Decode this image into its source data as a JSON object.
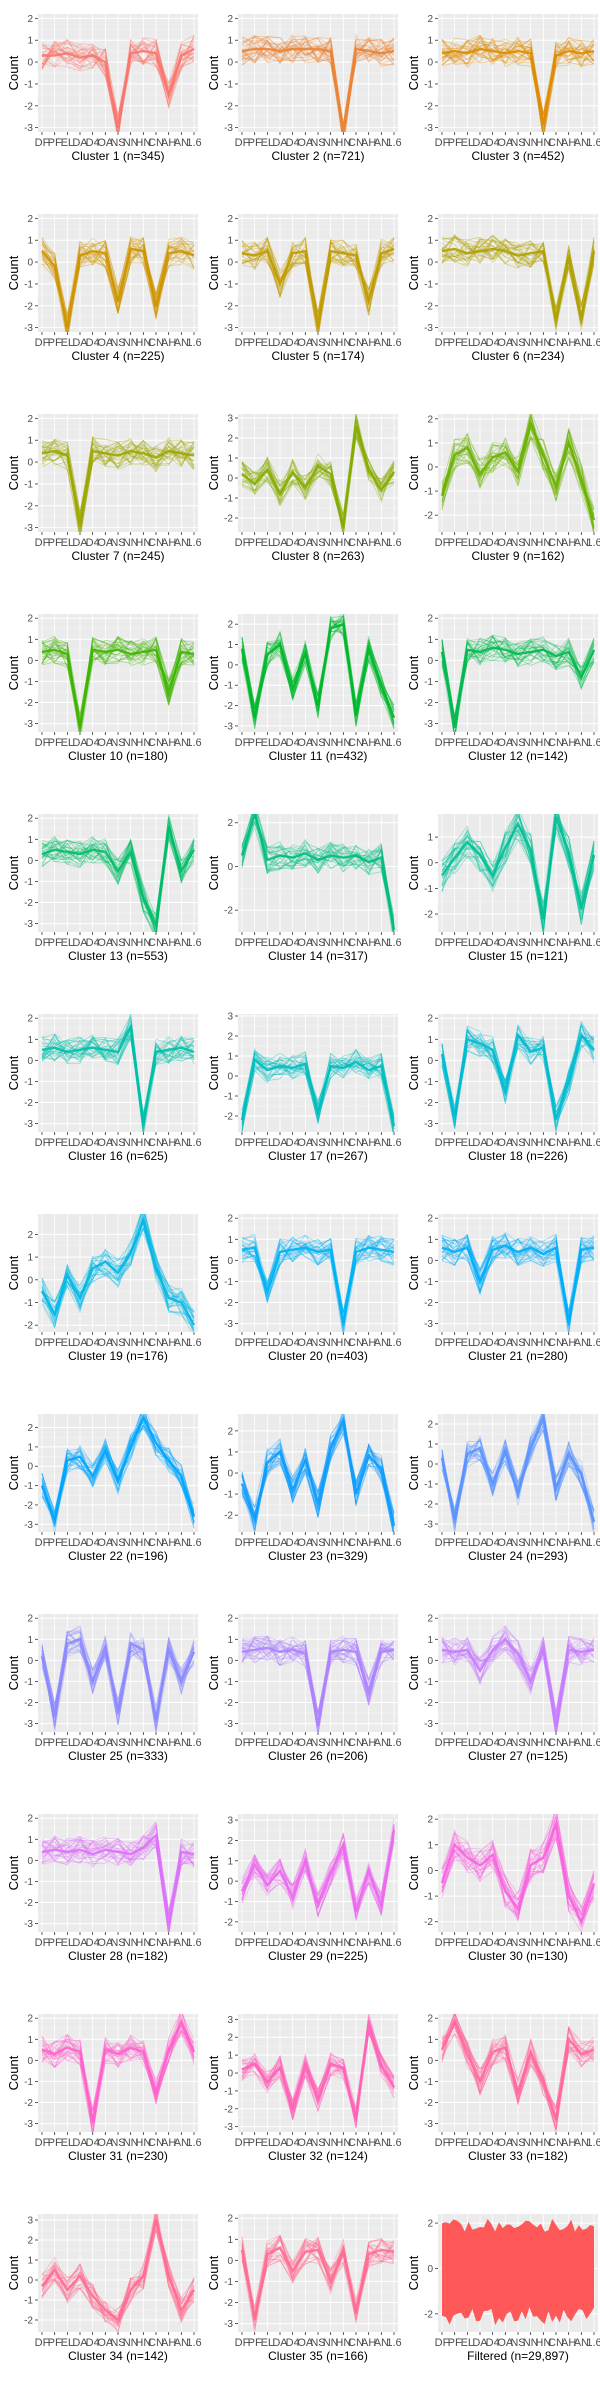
{
  "y_axis_label": "Count",
  "x_tick_labels": [
    "DF",
    "PF",
    "EL",
    "DA",
    "D4",
    "OA",
    "NS",
    "NN",
    "HN",
    "CN",
    "AH",
    "AN",
    "1.6"
  ],
  "chart_data": [
    {
      "type": "line",
      "caption": "Cluster 1 (n=345)",
      "color": "#F8766D",
      "ylim": [
        -3.2,
        2.2
      ],
      "yticks": [
        -3,
        -2,
        -1,
        0,
        1,
        2
      ],
      "profile": [
        0.3,
        0.3,
        0.4,
        0.2,
        0.3,
        0.0,
        -3.0,
        0.4,
        0.5,
        0.4,
        -1.5,
        0.3,
        0.6
      ]
    },
    {
      "type": "line",
      "caption": "Cluster 2 (n=721)",
      "color": "#EB8335",
      "ylim": [
        -3.2,
        2.2
      ],
      "yticks": [
        -3,
        -2,
        -1,
        0,
        1,
        2
      ],
      "profile": [
        0.5,
        0.6,
        0.6,
        0.5,
        0.6,
        0.6,
        0.6,
        0.5,
        -3.2,
        0.6,
        0.5,
        0.4,
        0.5
      ]
    },
    {
      "type": "line",
      "caption": "Cluster 3 (n=452)",
      "color": "#DE8C00",
      "ylim": [
        -3.2,
        2.2
      ],
      "yticks": [
        -3,
        -2,
        -1,
        0,
        1,
        2
      ],
      "profile": [
        0.4,
        0.5,
        0.4,
        0.6,
        0.5,
        0.4,
        0.5,
        0.4,
        -2.9,
        0.3,
        0.5,
        0.4,
        0.5
      ]
    },
    {
      "type": "line",
      "caption": "Cluster 4 (n=225)",
      "color": "#CF9400",
      "ylim": [
        -3.2,
        2.2
      ],
      "yticks": [
        -3,
        -2,
        -1,
        0,
        1,
        2
      ],
      "profile": [
        0.5,
        -0.2,
        -3.0,
        0.3,
        0.5,
        0.4,
        -1.8,
        0.6,
        0.5,
        -2.0,
        0.4,
        0.5,
        0.3
      ]
    },
    {
      "type": "line",
      "caption": "Cluster 5 (n=174)",
      "color": "#C09B00",
      "ylim": [
        -3.2,
        2.2
      ],
      "yticks": [
        -3,
        -2,
        -1,
        0,
        1,
        2
      ],
      "profile": [
        0.4,
        0.3,
        0.5,
        -1.0,
        0.4,
        0.5,
        -2.9,
        0.5,
        0.4,
        0.3,
        -1.8,
        0.4,
        0.6
      ]
    },
    {
      "type": "line",
      "caption": "Cluster 6 (n=234)",
      "color": "#AFA100",
      "ylim": [
        -3.2,
        2.2
      ],
      "yticks": [
        -3,
        -2,
        -1,
        0,
        1,
        2
      ],
      "profile": [
        0.5,
        0.6,
        0.4,
        0.5,
        0.6,
        0.5,
        0.3,
        0.4,
        0.5,
        -2.6,
        0.2,
        -2.5,
        0.5
      ]
    },
    {
      "type": "line",
      "caption": "Cluster 7 (n=245)",
      "color": "#9CA700",
      "ylim": [
        -3.2,
        2.2
      ],
      "yticks": [
        -3,
        -2,
        -1,
        0,
        1,
        2
      ],
      "profile": [
        0.4,
        0.5,
        0.3,
        -2.9,
        0.5,
        0.4,
        0.3,
        0.5,
        0.4,
        0.2,
        0.5,
        0.4,
        0.3
      ]
    },
    {
      "type": "line",
      "caption": "Cluster 8 (n=263)",
      "color": "#86AC00",
      "ylim": [
        -2.7,
        3.2
      ],
      "yticks": [
        -2,
        -1,
        0,
        1,
        2,
        3
      ],
      "profile": [
        0.2,
        -0.3,
        0.4,
        -0.8,
        0.3,
        -0.5,
        0.6,
        0.2,
        -2.4,
        2.6,
        0.4,
        -0.6,
        0.3
      ]
    },
    {
      "type": "line",
      "caption": "Cluster 9 (n=162)",
      "color": "#6BB100",
      "ylim": [
        -2.7,
        2.2
      ],
      "yticks": [
        -2,
        -1,
        0,
        1,
        2
      ],
      "profile": [
        -1.2,
        0.5,
        0.8,
        -0.3,
        0.4,
        0.6,
        -0.2,
        1.8,
        0.5,
        -0.8,
        1.0,
        -0.5,
        -2.2
      ]
    },
    {
      "type": "line",
      "caption": "Cluster 10 (n=180)",
      "color": "#3FB500",
      "ylim": [
        -3.4,
        2.2
      ],
      "yticks": [
        -3,
        -2,
        -1,
        0,
        1,
        2
      ],
      "profile": [
        0.4,
        0.5,
        0.3,
        -3.2,
        0.5,
        0.4,
        0.5,
        0.3,
        0.4,
        0.5,
        -1.5,
        0.4,
        0.3
      ]
    },
    {
      "type": "line",
      "caption": "Cluster 11 (n=432)",
      "color": "#00B82A",
      "ylim": [
        -3.3,
        2.5
      ],
      "yticks": [
        -3,
        -2,
        -1,
        0,
        1,
        2
      ],
      "profile": [
        0.8,
        -2.6,
        0.5,
        1.0,
        -1.2,
        0.6,
        -2.0,
        1.8,
        2.0,
        -2.5,
        0.8,
        -1.0,
        -2.6
      ]
    },
    {
      "type": "line",
      "caption": "Cluster 12 (n=142)",
      "color": "#00BA4E",
      "ylim": [
        -3.4,
        2.2
      ],
      "yticks": [
        -3,
        -2,
        -1,
        0,
        1,
        2
      ],
      "profile": [
        0.4,
        -3.2,
        0.5,
        0.4,
        0.6,
        0.5,
        0.3,
        0.4,
        0.5,
        0.2,
        0.4,
        -0.8,
        0.5
      ]
    },
    {
      "type": "line",
      "caption": "Cluster 13 (n=553)",
      "color": "#00BC68",
      "ylim": [
        -3.4,
        2.2
      ],
      "yticks": [
        -3,
        -2,
        -1,
        0,
        1,
        2
      ],
      "profile": [
        0.3,
        0.5,
        0.4,
        0.3,
        0.5,
        0.4,
        -0.5,
        0.4,
        -1.8,
        -3.1,
        1.6,
        -0.5,
        0.5
      ]
    },
    {
      "type": "line",
      "caption": "Cluster 14 (n=317)",
      "color": "#00BE80",
      "ylim": [
        -3.0,
        2.4
      ],
      "yticks": [
        -2,
        0,
        2
      ],
      "profile": [
        0.5,
        2.4,
        0.3,
        0.5,
        0.4,
        0.6,
        0.3,
        0.5,
        0.4,
        0.5,
        0.2,
        0.4,
        -2.9
      ]
    },
    {
      "type": "line",
      "caption": "Cluster 15 (n=121)",
      "color": "#00BF96",
      "ylim": [
        -2.7,
        1.9
      ],
      "yticks": [
        -2,
        -1,
        0,
        1
      ],
      "profile": [
        -0.5,
        0.2,
        0.8,
        0.3,
        -0.5,
        0.6,
        1.5,
        0.5,
        -2.2,
        1.8,
        0.4,
        -1.8,
        0.3
      ]
    },
    {
      "type": "line",
      "caption": "Cluster 16 (n=625)",
      "color": "#00BFAA",
      "ylim": [
        -3.4,
        2.2
      ],
      "yticks": [
        -3,
        -2,
        -1,
        0,
        1,
        2
      ],
      "profile": [
        0.5,
        0.6,
        0.4,
        0.5,
        0.6,
        0.5,
        0.4,
        1.6,
        -3.0,
        0.4,
        0.5,
        0.6,
        0.4
      ]
    },
    {
      "type": "line",
      "caption": "Cluster 17 (n=267)",
      "color": "#00BEBE",
      "ylim": [
        -2.8,
        3.1
      ],
      "yticks": [
        -2,
        -1,
        0,
        1,
        2,
        3
      ],
      "profile": [
        -2.2,
        0.8,
        0.3,
        0.5,
        0.4,
        0.6,
        -1.8,
        0.5,
        0.4,
        0.7,
        0.3,
        0.5,
        -2.5
      ]
    },
    {
      "type": "line",
      "caption": "Cluster 18 (n=226)",
      "color": "#00BBD2",
      "ylim": [
        -3.4,
        2.2
      ],
      "yticks": [
        -3,
        -2,
        -1,
        0,
        1,
        2
      ],
      "profile": [
        0.3,
        -2.7,
        1.0,
        0.8,
        0.5,
        -1.5,
        1.2,
        0.4,
        0.6,
        -2.8,
        -1.0,
        1.2,
        0.5
      ]
    },
    {
      "type": "line",
      "caption": "Cluster 19 (n=176)",
      "color": "#00B8E5",
      "ylim": [
        -2.3,
        2.9
      ],
      "yticks": [
        -2,
        -1,
        0,
        1,
        2
      ],
      "profile": [
        -0.5,
        -1.5,
        0.2,
        -0.8,
        0.5,
        0.8,
        0.3,
        1.2,
        2.6,
        0.5,
        -0.8,
        -1.0,
        -2.0
      ]
    },
    {
      "type": "line",
      "caption": "Cluster 20 (n=403)",
      "color": "#00B3F5",
      "ylim": [
        -3.4,
        2.2
      ],
      "yticks": [
        -3,
        -2,
        -1,
        0,
        1,
        2
      ],
      "profile": [
        0.5,
        0.6,
        -1.5,
        0.4,
        0.5,
        0.6,
        0.4,
        0.5,
        -3.0,
        0.4,
        0.6,
        0.5,
        0.4
      ]
    },
    {
      "type": "line",
      "caption": "Cluster 21 (n=280)",
      "color": "#00ADFA",
      "ylim": [
        -3.4,
        2.2
      ],
      "yticks": [
        -3,
        -2,
        -1,
        0,
        1,
        2
      ],
      "profile": [
        0.6,
        0.4,
        0.6,
        -1.0,
        0.5,
        0.7,
        0.4,
        0.6,
        0.3,
        0.6,
        -3.0,
        0.5,
        0.6
      ]
    },
    {
      "type": "line",
      "caption": "Cluster 22 (n=196)",
      "color": "#00A5FF",
      "ylim": [
        -3.4,
        2.7
      ],
      "yticks": [
        -3,
        -2,
        -1,
        0,
        1,
        2
      ],
      "profile": [
        -1.0,
        -2.8,
        0.3,
        0.5,
        -0.5,
        0.8,
        -0.8,
        1.0,
        2.5,
        1.2,
        0.3,
        -0.5,
        -2.6
      ]
    },
    {
      "type": "line",
      "caption": "Cluster 23 (n=329)",
      "color": "#0C9CFF",
      "ylim": [
        -2.8,
        2.8
      ],
      "yticks": [
        -2,
        -1,
        0,
        1,
        2
      ],
      "profile": [
        -0.5,
        -2.2,
        0.5,
        1.0,
        -0.8,
        0.6,
        -1.5,
        1.2,
        2.5,
        -1.0,
        0.8,
        0.2,
        -2.5
      ]
    },
    {
      "type": "line",
      "caption": "Cluster 24 (n=293)",
      "color": "#5B94FF",
      "ylim": [
        -3.4,
        2.5
      ],
      "yticks": [
        -3,
        -2,
        -1,
        0,
        1,
        2
      ],
      "profile": [
        0.3,
        -2.8,
        0.5,
        0.8,
        -1.0,
        0.6,
        -1.5,
        0.8,
        2.3,
        -1.2,
        0.5,
        -0.5,
        -2.9
      ]
    },
    {
      "type": "line",
      "caption": "Cluster 25 (n=333)",
      "color": "#8B8AFF",
      "ylim": [
        -3.4,
        2.2
      ],
      "yticks": [
        -3,
        -2,
        -1,
        0,
        1,
        2
      ],
      "profile": [
        0.2,
        -2.7,
        0.8,
        1.0,
        -1.0,
        0.6,
        -2.5,
        0.8,
        0.5,
        -2.8,
        0.5,
        -1.0,
        0.4
      ]
    },
    {
      "type": "line",
      "caption": "Cluster 26 (n=206)",
      "color": "#AC82FF",
      "ylim": [
        -3.4,
        2.2
      ],
      "yticks": [
        -3,
        -2,
        -1,
        0,
        1,
        2
      ],
      "profile": [
        0.4,
        0.5,
        0.6,
        0.4,
        0.5,
        0.3,
        -3.1,
        0.4,
        0.5,
        0.4,
        -1.5,
        0.4,
        0.5
      ]
    },
    {
      "type": "line",
      "caption": "Cluster 27 (n=125)",
      "color": "#C77CFF",
      "ylim": [
        -3.4,
        2.2
      ],
      "yticks": [
        -3,
        -2,
        -1,
        0,
        1,
        2
      ],
      "profile": [
        0.5,
        0.4,
        0.5,
        -0.5,
        0.5,
        1.0,
        0.3,
        -1.0,
        0.5,
        -3.0,
        0.5,
        0.4,
        0.5
      ]
    },
    {
      "type": "line",
      "caption": "Cluster 28 (n=182)",
      "color": "#DC71FA",
      "ylim": [
        -3.4,
        2.2
      ],
      "yticks": [
        -3,
        -2,
        -1,
        0,
        1,
        2
      ],
      "profile": [
        0.4,
        0.5,
        0.4,
        0.5,
        0.3,
        0.5,
        0.4,
        0.3,
        0.6,
        1.2,
        -3.0,
        0.4,
        0.3
      ]
    },
    {
      "type": "line",
      "caption": "Cluster 29 (n=225)",
      "color": "#EC69EF",
      "ylim": [
        -2.5,
        3.3
      ],
      "yticks": [
        -2,
        -1,
        0,
        1,
        2,
        3
      ],
      "profile": [
        -0.5,
        0.8,
        -0.2,
        0.5,
        -0.8,
        1.0,
        -1.2,
        0.4,
        1.8,
        -1.5,
        0.5,
        -1.2,
        2.5
      ]
    },
    {
      "type": "line",
      "caption": "Cluster 30 (n=130)",
      "color": "#F863DF",
      "ylim": [
        -2.4,
        2.2
      ],
      "yticks": [
        -2,
        -1,
        0,
        1,
        2
      ],
      "profile": [
        -0.5,
        1.0,
        0.5,
        0.2,
        0.6,
        -0.8,
        -1.5,
        0.2,
        0.5,
        1.8,
        -1.0,
        -2.0,
        -0.5
      ]
    },
    {
      "type": "line",
      "caption": "Cluster 31 (n=230)",
      "color": "#FF61CC",
      "ylim": [
        -3.4,
        2.2
      ],
      "yticks": [
        -3,
        -2,
        -1,
        0,
        1,
        2
      ],
      "profile": [
        0.5,
        0.3,
        0.6,
        0.4,
        -2.9,
        0.5,
        0.3,
        0.6,
        0.4,
        -1.5,
        0.5,
        1.8,
        0.4
      ]
    },
    {
      "type": "line",
      "caption": "Cluster 32 (n=124)",
      "color": "#FF62B6",
      "ylim": [
        -3.3,
        3.3
      ],
      "yticks": [
        -3,
        -2,
        -1,
        0,
        1,
        2,
        3
      ],
      "profile": [
        0.2,
        0.5,
        -0.5,
        0.3,
        -2.0,
        0.4,
        -1.5,
        0.5,
        0.3,
        -2.5,
        2.8,
        0.4,
        -0.8
      ]
    },
    {
      "type": "line",
      "caption": "Cluster 33 (n=182)",
      "color": "#FF689E",
      "ylim": [
        -3.4,
        2.2
      ],
      "yticks": [
        -3,
        -2,
        -1,
        0,
        1,
        2
      ],
      "profile": [
        0.5,
        1.8,
        0.3,
        -1.0,
        0.4,
        0.6,
        -1.5,
        0.4,
        -1.0,
        -2.8,
        1.0,
        0.3,
        0.5
      ]
    },
    {
      "type": "line",
      "caption": "Cluster 34 (n=142)",
      "color": "#FF6C91",
      "ylim": [
        -2.6,
        3.3
      ],
      "yticks": [
        -2,
        -1,
        0,
        1,
        2,
        3
      ],
      "profile": [
        -0.3,
        0.5,
        -0.5,
        0.2,
        -0.8,
        -1.5,
        -2.0,
        -0.5,
        0.2,
        3.0,
        0.2,
        -1.5,
        -0.5
      ]
    },
    {
      "type": "line",
      "caption": "Cluster 35 (n=166)",
      "color": "#FF6C91",
      "ylim": [
        -3.4,
        2.2
      ],
      "yticks": [
        -3,
        -2,
        -1,
        0,
        1,
        2
      ],
      "profile": [
        0.5,
        -2.8,
        0.3,
        0.6,
        -0.5,
        0.4,
        0.5,
        -1.0,
        0.4,
        -2.5,
        0.3,
        0.5,
        0.4
      ]
    },
    {
      "type": "area",
      "caption": "Filtered (n=29,897)",
      "color": "#FF5050",
      "ylim": [
        -2.8,
        2.4
      ],
      "yticks": [
        -2,
        0,
        2
      ],
      "profile": [
        0,
        0,
        0,
        0,
        0,
        0,
        0,
        0,
        0,
        0,
        0,
        0,
        0
      ]
    }
  ]
}
